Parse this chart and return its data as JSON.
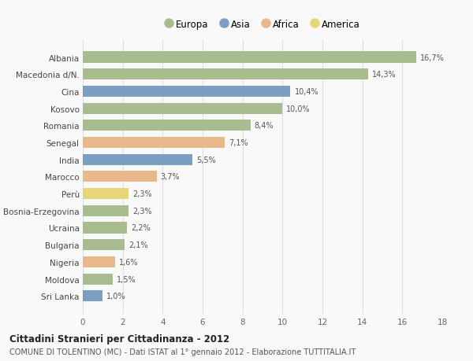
{
  "countries": [
    "Albania",
    "Macedonia d/N.",
    "Cina",
    "Kosovo",
    "Romania",
    "Senegal",
    "India",
    "Marocco",
    "Perù",
    "Bosnia-Erzegovina",
    "Ucraina",
    "Bulgaria",
    "Nigeria",
    "Moldova",
    "Sri Lanka"
  ],
  "values": [
    16.7,
    14.3,
    10.4,
    10.0,
    8.4,
    7.1,
    5.5,
    3.7,
    2.3,
    2.3,
    2.2,
    2.1,
    1.6,
    1.5,
    1.0
  ],
  "labels": [
    "16,7%",
    "14,3%",
    "10,4%",
    "10,0%",
    "8,4%",
    "7,1%",
    "5,5%",
    "3,7%",
    "2,3%",
    "2,3%",
    "2,2%",
    "2,1%",
    "1,6%",
    "1,5%",
    "1,0%"
  ],
  "continents": [
    "Europa",
    "Europa",
    "Asia",
    "Europa",
    "Europa",
    "Africa",
    "Asia",
    "Africa",
    "America",
    "Europa",
    "Europa",
    "Europa",
    "Africa",
    "Europa",
    "Asia"
  ],
  "colors": {
    "Europa": "#a8bc8f",
    "Asia": "#7a9fc2",
    "Africa": "#e8b88a",
    "America": "#e8d47a"
  },
  "legend_order": [
    "Europa",
    "Asia",
    "Africa",
    "America"
  ],
  "title1": "Cittadini Stranieri per Cittadinanza - 2012",
  "title2": "COMUNE DI TOLENTINO (MC) - Dati ISTAT al 1° gennaio 2012 - Elaborazione TUTTITALIA.IT",
  "xlim": [
    0,
    18
  ],
  "xticks": [
    0,
    2,
    4,
    6,
    8,
    10,
    12,
    14,
    16,
    18
  ],
  "background_color": "#f9f9f9",
  "grid_color": "#dddddd"
}
